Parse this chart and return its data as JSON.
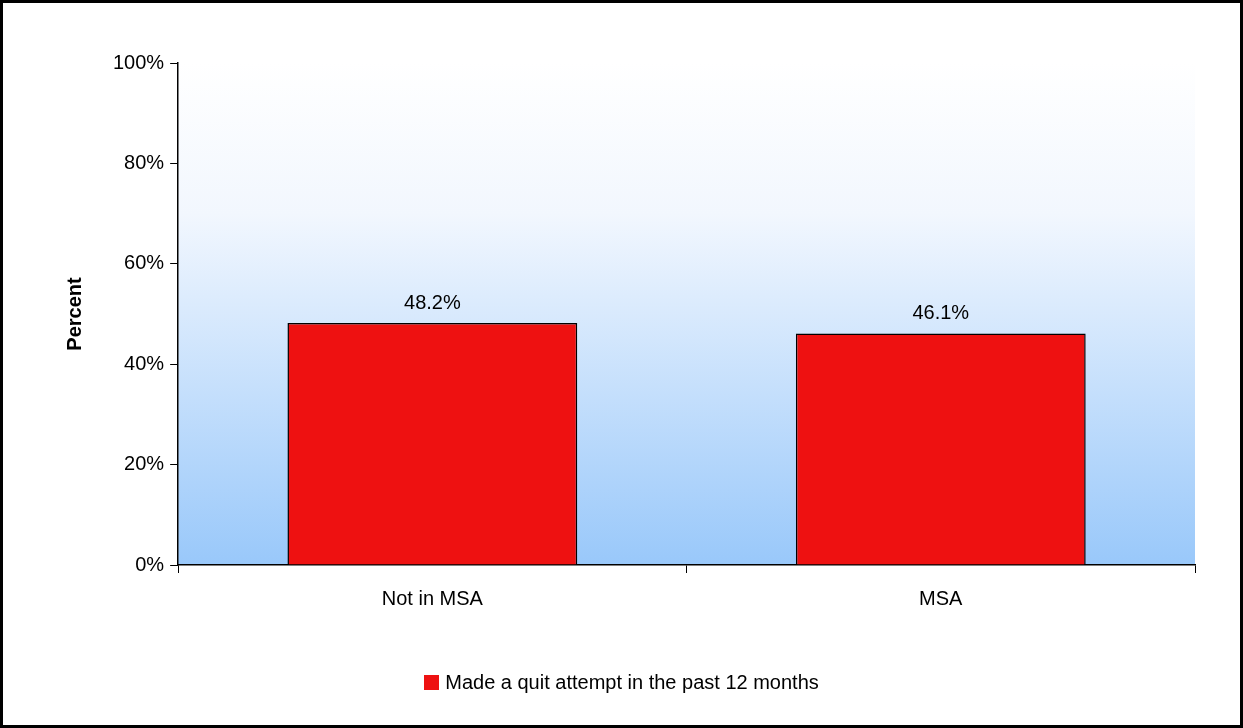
{
  "chart_data": {
    "type": "bar",
    "ylabel": "Percent",
    "categories": [
      "Not in MSA",
      "MSA"
    ],
    "series": [
      {
        "name": "Made a quit attempt in the past 12 months",
        "color": "#ee1111",
        "values": [
          48.2,
          46.1
        ],
        "value_labels": [
          "48.2%",
          "46.1%"
        ]
      }
    ],
    "ylim": [
      0,
      100
    ],
    "yticks": [
      {
        "value": 0,
        "label": "0%"
      },
      {
        "value": 20,
        "label": "20%"
      },
      {
        "value": 40,
        "label": "40%"
      },
      {
        "value": 60,
        "label": "60%"
      },
      {
        "value": 80,
        "label": "80%"
      },
      {
        "value": 100,
        "label": "100%"
      }
    ],
    "grid": false,
    "legend": "bottom"
  }
}
